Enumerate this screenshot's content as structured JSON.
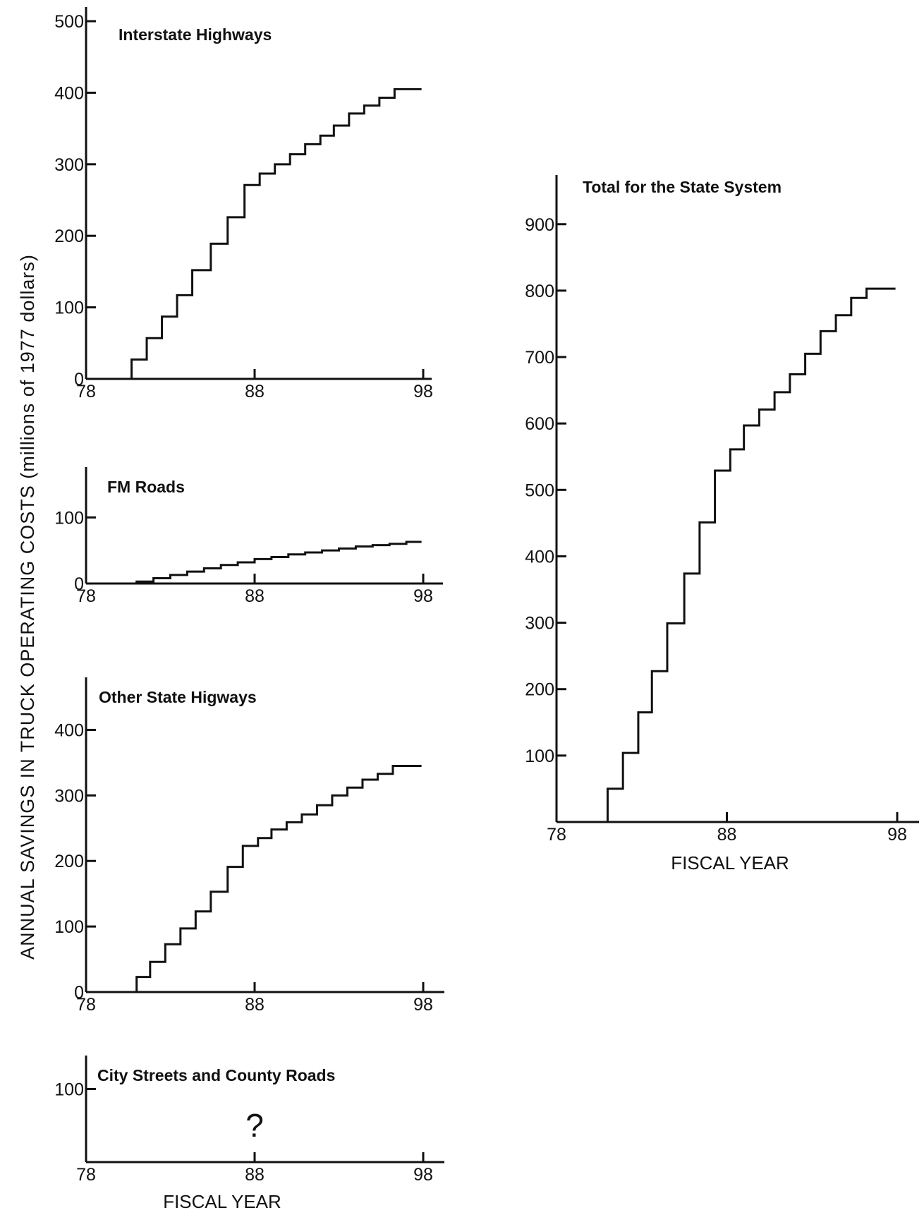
{
  "figure": {
    "ylabel": "ANNUAL SAVINGS IN TRUCK OPERATING COSTS (millions of 1977 dollars)",
    "left_xlabel": "FISCAL YEAR",
    "right_xlabel": "FISCAL YEAR"
  },
  "chart_data": [
    {
      "id": "interstate",
      "type": "line",
      "title": "Interstate Highways",
      "xlim": [
        78,
        98
      ],
      "ylim": [
        0,
        500
      ],
      "xticks": [
        "78",
        "88",
        "98"
      ],
      "yticks": [
        0,
        100,
        200,
        300,
        400,
        500
      ],
      "ytick_labels": [
        "0",
        "100",
        "200",
        "300",
        "400",
        "500"
      ],
      "x": [
        79.7,
        80.7,
        81.6,
        82.5,
        83.4,
        84.3,
        85.4,
        86.4,
        87.4,
        88.3,
        89.2,
        90.1,
        91,
        91.9,
        92.7,
        93.6,
        94.5,
        95.4,
        96.3,
        97.2,
        97.9
      ],
      "y": [
        0,
        27,
        57,
        87,
        117,
        152,
        189,
        226,
        271,
        287,
        300,
        314,
        328,
        340,
        354,
        371,
        382,
        393,
        405,
        405,
        405
      ]
    },
    {
      "id": "fm",
      "type": "line",
      "title": "FM Roads",
      "xlim": [
        78,
        98
      ],
      "ylim": [
        0,
        170
      ],
      "xticks": [
        "78",
        "88",
        "98"
      ],
      "yticks": [
        0,
        100
      ],
      "ytick_labels": [
        "0",
        "100"
      ],
      "x": [
        80,
        81,
        82,
        83,
        84,
        85,
        86,
        87,
        88,
        89,
        90,
        91,
        92,
        93,
        94,
        95,
        96,
        97,
        97.9
      ],
      "y": [
        0,
        3,
        8,
        13,
        18,
        23,
        28,
        32,
        37,
        40,
        44,
        47,
        50,
        53,
        56,
        58,
        60,
        63,
        63
      ]
    },
    {
      "id": "other",
      "type": "line",
      "title": "Other State Higways",
      "xlim": [
        78,
        98
      ],
      "ylim": [
        0,
        460
      ],
      "xticks": [
        "78",
        "88",
        "98"
      ],
      "yticks": [
        0,
        100,
        200,
        300,
        400
      ],
      "ytick_labels": [
        "0",
        "100",
        "200",
        "300",
        "400"
      ],
      "x": [
        79.8,
        81,
        81.8,
        82.7,
        83.6,
        84.5,
        85.4,
        86.4,
        87.3,
        88.2,
        89,
        89.9,
        90.8,
        91.7,
        92.6,
        93.5,
        94.4,
        95.3,
        96.2,
        97.1,
        97.9
      ],
      "y": [
        0,
        23,
        46,
        73,
        97,
        123,
        153,
        191,
        223,
        235,
        248,
        259,
        271,
        285,
        300,
        312,
        324,
        333,
        345,
        345,
        345
      ]
    },
    {
      "id": "city",
      "type": "line",
      "title": "City Streets and County Roads",
      "annotation": "?",
      "xlim": [
        78,
        98
      ],
      "ylim": [
        0,
        140
      ],
      "xticks": [
        "78",
        "88",
        "98"
      ],
      "yticks": [
        100
      ],
      "ytick_labels": [
        "100"
      ],
      "x": [],
      "y": []
    },
    {
      "id": "total",
      "type": "line",
      "title": "Total for the State System",
      "xlim": [
        78,
        98
      ],
      "ylim": [
        0,
        940
      ],
      "xticks": [
        "78",
        "88",
        "98"
      ],
      "yticks": [
        100,
        200,
        300,
        400,
        500,
        600,
        700,
        800,
        900
      ],
      "ytick_labels": [
        "100",
        "200",
        "300",
        "400",
        "500",
        "600",
        "700",
        "800",
        "900"
      ],
      "x": [
        80.1,
        81,
        81.9,
        82.8,
        83.6,
        84.5,
        85.5,
        86.4,
        87.3,
        88.2,
        89,
        89.9,
        90.8,
        91.7,
        92.6,
        93.5,
        94.4,
        95.3,
        96.2,
        97.1,
        97.9
      ],
      "y": [
        0,
        50,
        104,
        165,
        227,
        299,
        374,
        451,
        529,
        561,
        597,
        621,
        647,
        674,
        705,
        739,
        763,
        789,
        803,
        803,
        803
      ]
    }
  ]
}
